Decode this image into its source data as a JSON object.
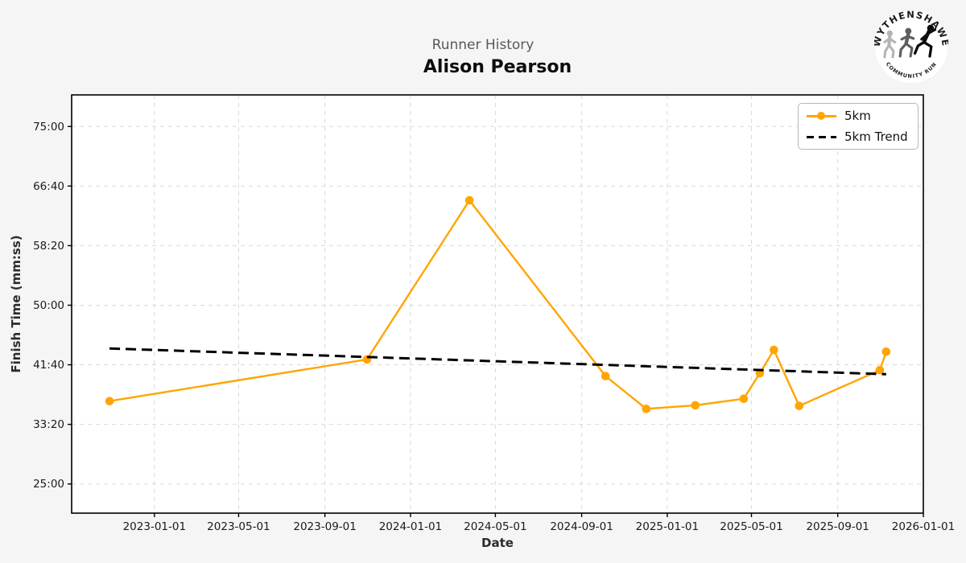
{
  "header": {
    "supertitle": "Runner History",
    "title": "Alison Pearson"
  },
  "logo": {
    "top_text": "WYTHENSHAWE",
    "bottom_text": "COMMUNITY RUN"
  },
  "chart_data": {
    "type": "line",
    "supertitle": "Runner History",
    "title": "Alison Pearson",
    "xlabel": "Date",
    "ylabel": "Finish Time (mm:ss)",
    "grid": true,
    "legend_position": "upper right",
    "x_tick_labels": [
      "2023-01-01",
      "2023-05-01",
      "2023-09-01",
      "2024-01-01",
      "2024-05-01",
      "2024-09-01",
      "2025-01-01",
      "2025-05-01",
      "2025-09-01",
      "2026-01-01"
    ],
    "y_tick_labels": [
      "25:00",
      "33:20",
      "41:40",
      "50:00",
      "58:20",
      "66:40",
      "75:00"
    ],
    "y_tick_seconds": [
      1500,
      2000,
      2500,
      3000,
      3500,
      4000,
      4500
    ],
    "x_range": [
      "2022-09-05",
      "2026-01-01"
    ],
    "y_range_seconds": [
      1255,
      4765
    ],
    "series": [
      {
        "name": "5km",
        "color": "#FFA500",
        "style": "solid",
        "markers": true,
        "points": [
          {
            "date": "2022-10-29",
            "finish": "36:35",
            "seconds": 2195
          },
          {
            "date": "2023-10-31",
            "finish": "42:25",
            "seconds": 2545
          },
          {
            "date": "2024-03-25",
            "finish": "64:40",
            "seconds": 3880
          },
          {
            "date": "2024-10-05",
            "finish": "40:05",
            "seconds": 2405
          },
          {
            "date": "2024-12-02",
            "finish": "35:30",
            "seconds": 2130
          },
          {
            "date": "2025-02-10",
            "finish": "36:00",
            "seconds": 2160
          },
          {
            "date": "2025-04-20",
            "finish": "36:55",
            "seconds": 2215
          },
          {
            "date": "2025-05-13",
            "finish": "40:30",
            "seconds": 2430
          },
          {
            "date": "2025-06-02",
            "finish": "43:45",
            "seconds": 2625
          },
          {
            "date": "2025-07-08",
            "finish": "35:55",
            "seconds": 2155
          },
          {
            "date": "2025-10-31",
            "finish": "40:55",
            "seconds": 2455
          },
          {
            "date": "2025-11-09",
            "finish": "43:30",
            "seconds": 2610
          }
        ]
      },
      {
        "name": "5km Trend",
        "color": "#000000",
        "style": "dashed",
        "markers": false,
        "points": [
          {
            "date": "2022-10-29",
            "finish": "43:57",
            "seconds": 2637
          },
          {
            "date": "2025-11-09",
            "finish": "40:21",
            "seconds": 2421
          }
        ]
      }
    ]
  }
}
